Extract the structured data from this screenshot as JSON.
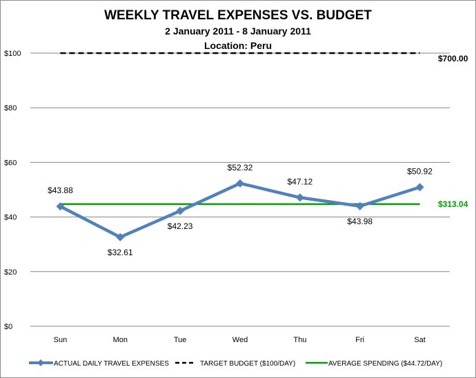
{
  "chart_data": {
    "type": "line",
    "title": "WEEKLY TRAVEL EXPENSES VS. BUDGET",
    "subtitle": "2 January 2011 - 8 January 2011",
    "subtitle2": "Location: Peru",
    "categories": [
      "Sun",
      "Mon",
      "Tue",
      "Wed",
      "Thu",
      "Fri",
      "Sat"
    ],
    "ylim": [
      0,
      100
    ],
    "yticks": [
      "$0",
      "$20",
      "$40",
      "$60",
      "$80",
      "$100"
    ],
    "ytick_values": [
      0,
      20,
      40,
      60,
      80,
      100
    ],
    "grid": true,
    "legend_position": "bottom",
    "series": [
      {
        "name": "ACTUAL DAILY TRAVEL EXPENSES",
        "values": [
          43.88,
          32.61,
          42.23,
          52.32,
          47.12,
          43.98,
          50.92
        ],
        "labels": [
          "$43.88",
          "$32.61",
          "$42.23",
          "$52.32",
          "$47.12",
          "$43.98",
          "$50.92"
        ],
        "color": "#4f81bd",
        "style": "solid-marker-diamond"
      },
      {
        "name": "TARGET BUDGET ($100/DAY)",
        "values": [
          100,
          100,
          100,
          100,
          100,
          100,
          100
        ],
        "color": "#000000",
        "style": "dashed",
        "end_label": "$700.00"
      },
      {
        "name": "AVERAGE SPENDING ($44.72/DAY)",
        "values": [
          44.72,
          44.72,
          44.72,
          44.72,
          44.72,
          44.72,
          44.72
        ],
        "color": "#00a000",
        "style": "solid",
        "end_label": "$313.04",
        "end_label_color": "#00a000"
      }
    ]
  }
}
